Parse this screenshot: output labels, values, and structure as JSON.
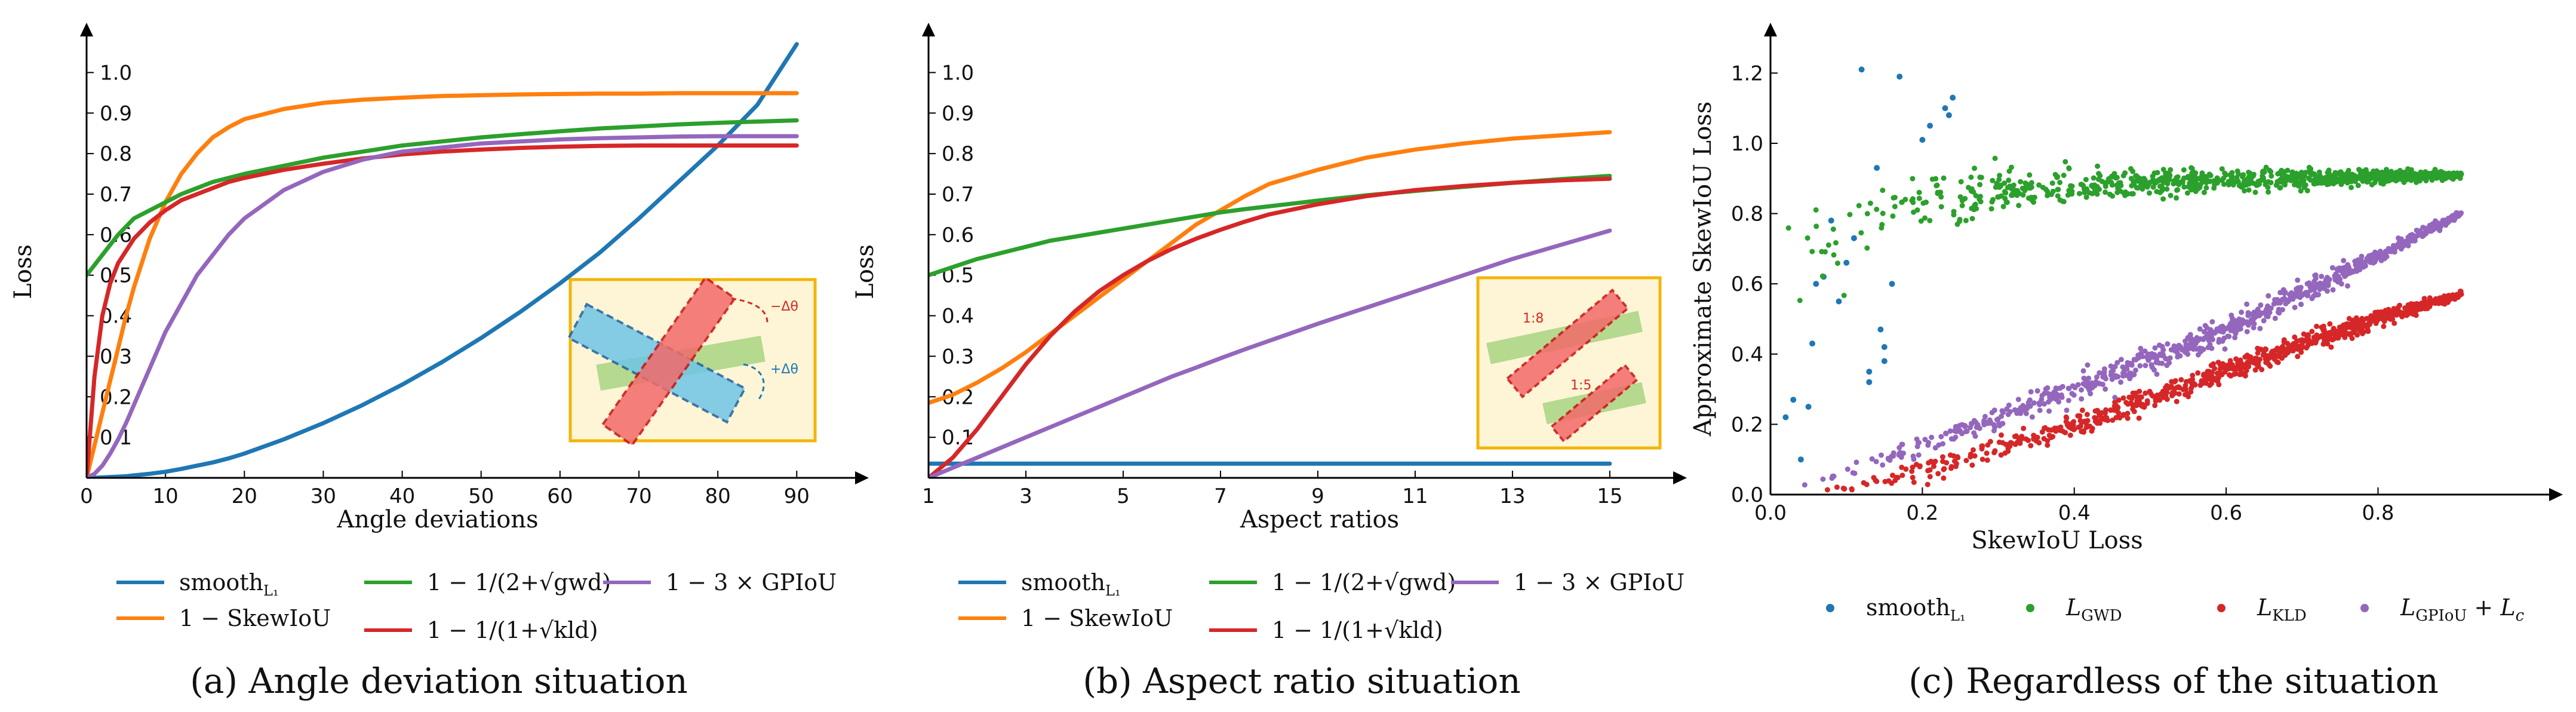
{
  "colors": {
    "blue": "#1f77b4",
    "orange": "#ff7f0e",
    "green": "#2ca02c",
    "red": "#d62728",
    "purple": "#9467bd",
    "inset_fill": "#fdf5d5",
    "inset_border": "#f3b50b"
  },
  "chart_data": [
    {
      "type": "line",
      "caption": "(a) Angle deviation situation",
      "xlabel": "Angle deviations",
      "ylabel": "Loss",
      "xlim": [
        0,
        98
      ],
      "ylim": [
        0,
        1.12
      ],
      "xticks": [
        "0",
        "10",
        "20",
        "30",
        "40",
        "50",
        "60",
        "70",
        "80",
        "90"
      ],
      "yticks": [
        "0.1",
        "0.2",
        "0.3",
        "0.4",
        "0.5",
        "0.6",
        "0.7",
        "0.8",
        "0.9",
        "1.0"
      ],
      "x": [
        0,
        1,
        2,
        3,
        4,
        5,
        6,
        8,
        10,
        12,
        14,
        16,
        18,
        20,
        25,
        30,
        35,
        40,
        45,
        50,
        55,
        60,
        65,
        70,
        75,
        80,
        85,
        90
      ],
      "series": [
        {
          "name": "smooth_L1",
          "color_key": "blue",
          "values": [
            0,
            0,
            0.001,
            0.002,
            0.003,
            0.004,
            0.006,
            0.01,
            0.015,
            0.022,
            0.03,
            0.038,
            0.048,
            0.06,
            0.095,
            0.135,
            0.18,
            0.23,
            0.285,
            0.345,
            0.41,
            0.48,
            0.555,
            0.64,
            0.73,
            0.82,
            0.92,
            1.07
          ]
        },
        {
          "name": "1 - SkewIoU",
          "color_key": "orange",
          "values": [
            0,
            0.08,
            0.16,
            0.24,
            0.32,
            0.4,
            0.47,
            0.59,
            0.68,
            0.75,
            0.8,
            0.84,
            0.865,
            0.885,
            0.91,
            0.925,
            0.933,
            0.938,
            0.942,
            0.944,
            0.946,
            0.947,
            0.948,
            0.948,
            0.949,
            0.949,
            0.949,
            0.949
          ]
        },
        {
          "name": "1 - 1/(2+sqrt(gwd))",
          "color_key": "green",
          "values": [
            0.5,
            0.525,
            0.55,
            0.575,
            0.6,
            0.62,
            0.64,
            0.66,
            0.68,
            0.7,
            0.715,
            0.73,
            0.74,
            0.75,
            0.77,
            0.79,
            0.805,
            0.82,
            0.83,
            0.84,
            0.848,
            0.855,
            0.862,
            0.867,
            0.872,
            0.876,
            0.879,
            0.882
          ]
        },
        {
          "name": "1 - 1/(1+sqrt(kld))",
          "color_key": "red",
          "values": [
            0,
            0.25,
            0.4,
            0.48,
            0.53,
            0.56,
            0.59,
            0.63,
            0.66,
            0.685,
            0.7,
            0.715,
            0.73,
            0.74,
            0.76,
            0.775,
            0.788,
            0.798,
            0.805,
            0.81,
            0.814,
            0.817,
            0.819,
            0.82,
            0.82,
            0.82,
            0.82,
            0.82
          ]
        },
        {
          "name": "1 - 3 x GPIoU",
          "color_key": "purple",
          "values": [
            0,
            0.01,
            0.03,
            0.06,
            0.095,
            0.135,
            0.18,
            0.27,
            0.36,
            0.43,
            0.5,
            0.55,
            0.6,
            0.64,
            0.71,
            0.755,
            0.785,
            0.805,
            0.815,
            0.825,
            0.83,
            0.835,
            0.838,
            0.84,
            0.842,
            0.843,
            0.843,
            0.843
          ]
        }
      ],
      "legend": [
        {
          "label": "smooth",
          "sub": "L₁",
          "color_key": "blue"
        },
        {
          "label": "1 − SkewIoU",
          "color_key": "orange"
        },
        {
          "label": "1 − 1/(2+√gwd)",
          "color_key": "green"
        },
        {
          "label": "1 − 1/(1+√kld)",
          "color_key": "red"
        },
        {
          "label": "1 − 3 × GPIoU",
          "color_key": "purple"
        }
      ],
      "inset_labels": [
        "−Δθ",
        "+Δθ"
      ]
    },
    {
      "type": "line",
      "caption": "(b) Aspect ratio situation",
      "xlabel": "Aspect ratios",
      "ylabel": "Loss",
      "xlim": [
        1,
        16.4
      ],
      "ylim": [
        0,
        1.12
      ],
      "xticks": [
        "1",
        "3",
        "5",
        "7",
        "9",
        "11",
        "13",
        "15"
      ],
      "yticks": [
        "0.1",
        "0.2",
        "0.3",
        "0.4",
        "0.5",
        "0.6",
        "0.7",
        "0.8",
        "0.9",
        "1.0"
      ],
      "x": [
        1,
        1.5,
        2,
        2.5,
        3,
        3.5,
        4,
        4.5,
        5,
        5.5,
        6,
        6.5,
        7,
        7.5,
        8,
        9,
        10,
        11,
        12,
        13,
        14,
        15
      ],
      "series": [
        {
          "name": "smooth_L1",
          "color_key": "blue",
          "values": [
            0.035,
            0.035,
            0.035,
            0.035,
            0.035,
            0.035,
            0.035,
            0.035,
            0.035,
            0.035,
            0.035,
            0.035,
            0.035,
            0.035,
            0.035,
            0.035,
            0.035,
            0.035,
            0.035,
            0.035,
            0.035,
            0.035
          ]
        },
        {
          "name": "1 - SkewIoU",
          "color_key": "orange",
          "values": [
            0.185,
            0.205,
            0.235,
            0.27,
            0.31,
            0.355,
            0.4,
            0.445,
            0.49,
            0.535,
            0.58,
            0.625,
            0.66,
            0.695,
            0.725,
            0.76,
            0.79,
            0.81,
            0.825,
            0.837,
            0.845,
            0.853
          ]
        },
        {
          "name": "1 - 1/(2+sqrt(gwd))",
          "color_key": "green",
          "values": [
            0.5,
            0.52,
            0.54,
            0.555,
            0.57,
            0.585,
            0.595,
            0.605,
            0.615,
            0.625,
            0.635,
            0.645,
            0.655,
            0.663,
            0.67,
            0.684,
            0.697,
            0.708,
            0.718,
            0.728,
            0.737,
            0.745
          ]
        },
        {
          "name": "1 - 1/(1+sqrt(kld))",
          "color_key": "red",
          "values": [
            0,
            0.05,
            0.12,
            0.2,
            0.28,
            0.35,
            0.41,
            0.46,
            0.5,
            0.535,
            0.565,
            0.59,
            0.612,
            0.632,
            0.65,
            0.675,
            0.695,
            0.71,
            0.72,
            0.728,
            0.734,
            0.738
          ]
        },
        {
          "name": "1 - 3 x GPIoU",
          "color_key": "purple",
          "values": [
            0,
            0.025,
            0.05,
            0.075,
            0.1,
            0.125,
            0.15,
            0.175,
            0.2,
            0.225,
            0.25,
            0.272,
            0.295,
            0.317,
            0.338,
            0.38,
            0.42,
            0.46,
            0.5,
            0.54,
            0.575,
            0.61
          ]
        }
      ],
      "legend": [
        {
          "label": "smooth",
          "sub": "L₁",
          "color_key": "blue"
        },
        {
          "label": "1 − SkewIoU",
          "color_key": "orange"
        },
        {
          "label": "1 − 1/(2+√gwd)",
          "color_key": "green"
        },
        {
          "label": "1 − 1/(1+√kld)",
          "color_key": "red"
        },
        {
          "label": "1 − 3 × GPIoU",
          "color_key": "purple"
        }
      ],
      "inset_labels": [
        "1:8",
        "1:5"
      ]
    },
    {
      "type": "scatter",
      "caption": "(c) Regardless of the situation",
      "xlabel": "SkewIoU Loss",
      "ylabel": "Approximate SkewIoU Loss",
      "xlim": [
        0,
        1.03
      ],
      "ylim": [
        0,
        1.34
      ],
      "xticks": [
        0,
        0.2,
        0.4,
        0.6,
        0.8
      ],
      "xtick_labels": [
        "0.0",
        "0.2",
        "0.4",
        "0.6",
        "0.8"
      ],
      "yticks": [
        0,
        0.2,
        0.4,
        0.6,
        0.8,
        1.0,
        1.2
      ],
      "ytick_labels": [
        "0.0",
        "0.2",
        "0.4",
        "0.6",
        "0.8",
        "1.0",
        "1.2"
      ],
      "series": [
        {
          "name": "smooth_L1",
          "color_key": "blue",
          "points": [
            [
              0.02,
              0.22
            ],
            [
              0.03,
              0.27
            ],
            [
              0.04,
              0.1
            ],
            [
              0.05,
              0.25
            ],
            [
              0.055,
              0.43
            ],
            [
              0.06,
              0.6
            ],
            [
              0.07,
              0.62
            ],
            [
              0.08,
              0.78
            ],
            [
              0.1,
              0.66
            ],
            [
              0.11,
              0.73
            ],
            [
              0.12,
              1.21
            ],
            [
              0.13,
              0.32
            ],
            [
              0.13,
              0.35
            ],
            [
              0.14,
              0.93
            ],
            [
              0.145,
              0.47
            ],
            [
              0.15,
              0.38
            ],
            [
              0.15,
              0.42
            ],
            [
              0.17,
              1.19
            ],
            [
              0.2,
              1.01
            ],
            [
              0.21,
              1.05
            ],
            [
              0.23,
              1.1
            ],
            [
              0.235,
              1.08
            ],
            [
              0.24,
              1.13
            ],
            [
              0.09,
              0.55
            ],
            [
              0.16,
              0.6
            ]
          ]
        },
        {
          "name": "L_GWD",
          "color_key": "green",
          "trend": [
            [
              0.0,
              0.55
            ],
            [
              0.05,
              0.68
            ],
            [
              0.1,
              0.76
            ],
            [
              0.15,
              0.8
            ],
            [
              0.2,
              0.83
            ],
            [
              0.3,
              0.86
            ],
            [
              0.4,
              0.875
            ],
            [
              0.5,
              0.885
            ],
            [
              0.6,
              0.893
            ],
            [
              0.7,
              0.9
            ],
            [
              0.8,
              0.905
            ],
            [
              0.91,
              0.91
            ]
          ],
          "spread": [
            [
              0.0,
              0.12
            ],
            [
              0.1,
              0.12
            ],
            [
              0.2,
              0.1
            ],
            [
              0.3,
              0.07
            ],
            [
              0.4,
              0.05
            ],
            [
              0.6,
              0.035
            ],
            [
              0.8,
              0.02
            ],
            [
              0.91,
              0.01
            ]
          ],
          "count": 900
        },
        {
          "name": "L_KLD",
          "color_key": "red",
          "trend": [
            [
              0.05,
              0.0
            ],
            [
              0.1,
              0.02
            ],
            [
              0.2,
              0.07
            ],
            [
              0.3,
              0.13
            ],
            [
              0.4,
              0.2
            ],
            [
              0.5,
              0.27
            ],
            [
              0.6,
              0.35
            ],
            [
              0.7,
              0.43
            ],
            [
              0.8,
              0.5
            ],
            [
              0.91,
              0.57
            ]
          ],
          "spread": [
            [
              0.05,
              0.01
            ],
            [
              0.2,
              0.03
            ],
            [
              0.4,
              0.04
            ],
            [
              0.6,
              0.035
            ],
            [
              0.8,
              0.025
            ],
            [
              0.91,
              0.01
            ]
          ],
          "count": 800
        },
        {
          "name": "L_GPIoU + L_c",
          "color_key": "purple",
          "trend": [
            [
              0.02,
              0.01
            ],
            [
              0.1,
              0.07
            ],
            [
              0.2,
              0.14
            ],
            [
              0.3,
              0.22
            ],
            [
              0.4,
              0.3
            ],
            [
              0.5,
              0.38
            ],
            [
              0.6,
              0.47
            ],
            [
              0.7,
              0.57
            ],
            [
              0.8,
              0.68
            ],
            [
              0.91,
              0.8
            ]
          ],
          "spread": [
            [
              0.02,
              0.01
            ],
            [
              0.2,
              0.03
            ],
            [
              0.4,
              0.045
            ],
            [
              0.6,
              0.04
            ],
            [
              0.8,
              0.025
            ],
            [
              0.91,
              0.01
            ]
          ],
          "count": 800
        }
      ],
      "legend": [
        {
          "label": "smooth",
          "sub": "L₁",
          "color_key": "blue"
        },
        {
          "label": "L",
          "sub": "GWD",
          "color_key": "green"
        },
        {
          "label": "L",
          "sub": "KLD",
          "color_key": "red"
        },
        {
          "label": "L",
          "sub": "GPIoU",
          "suffix": " + L",
          "sub2": "c",
          "color_key": "purple"
        }
      ]
    }
  ]
}
